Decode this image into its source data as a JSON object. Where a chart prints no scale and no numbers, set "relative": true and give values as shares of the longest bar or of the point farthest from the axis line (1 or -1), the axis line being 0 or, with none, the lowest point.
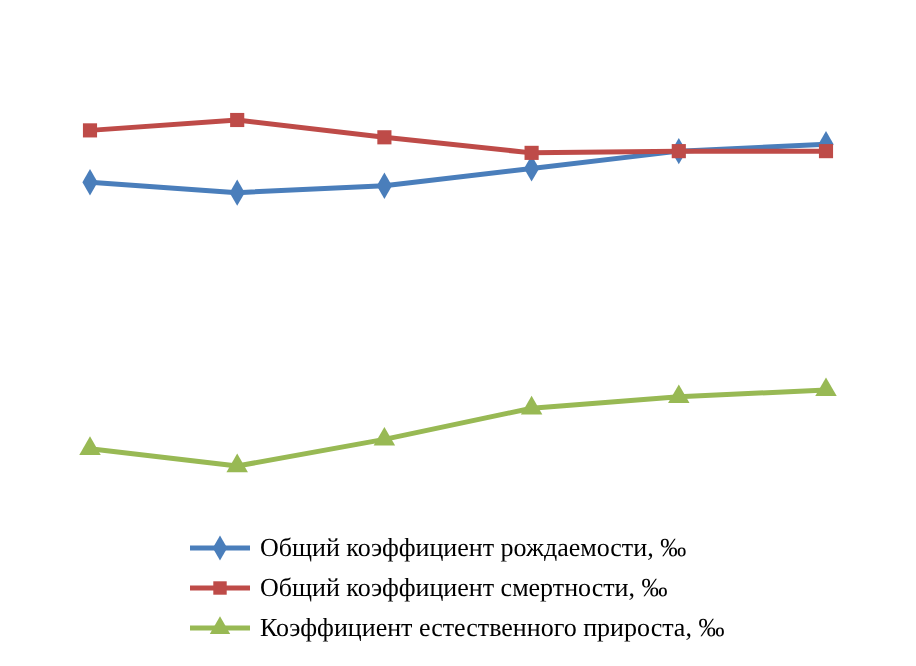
{
  "chart_data": {
    "type": "line",
    "relative": true,
    "categories": [
      null,
      null,
      null,
      null,
      null,
      null
    ],
    "legend": "bottom",
    "line_style": "solid",
    "series": [
      {
        "name": "Общий коэффициент рождаемости, ‰",
        "color": "#4a7ebb",
        "marker": "diamond",
        "values": [
          0.82,
          0.79,
          0.81,
          0.86,
          0.91,
          0.93
        ]
      },
      {
        "name": "Общий коэффициент смертности, ‰",
        "color": "#be4b48",
        "marker": "square",
        "values": [
          0.97,
          1.0,
          0.95,
          0.905,
          0.91,
          0.91
        ]
      },
      {
        "name": "Коэффициент естественного прироста, ‰",
        "color": "#98b954",
        "marker": "triangle",
        "values": [
          0.05,
          0,
          0.077,
          0.167,
          0.2,
          0.22
        ]
      }
    ]
  }
}
